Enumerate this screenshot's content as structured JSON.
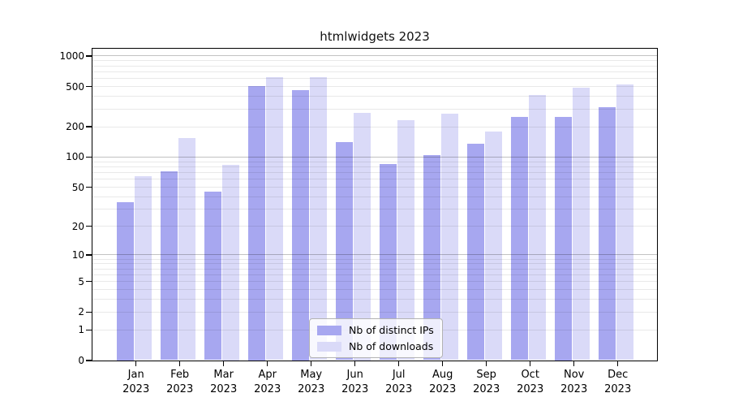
{
  "chart_data": {
    "type": "bar",
    "title": "htmlwidgets 2023",
    "x_axis": {
      "categories": [
        "Jan",
        "Feb",
        "Mar",
        "Apr",
        "May",
        "Jun",
        "Jul",
        "Aug",
        "Sep",
        "Oct",
        "Nov",
        "Dec"
      ],
      "year_label": "2023"
    },
    "y_axis": {
      "scale": "log1p",
      "ticks": [
        0,
        1,
        2,
        5,
        10,
        20,
        50,
        100,
        200,
        500,
        1000
      ],
      "major_gridlines": [
        10,
        100,
        1000
      ],
      "minor_gridlines": [
        1,
        2,
        3,
        4,
        5,
        6,
        7,
        8,
        9,
        20,
        30,
        40,
        50,
        60,
        70,
        80,
        90,
        200,
        300,
        400,
        500,
        600,
        700,
        800,
        900
      ],
      "ylim": [
        0,
        1180
      ],
      "grid": true
    },
    "series": [
      {
        "name": "Nb of distinct IPs",
        "color": "#a7a7f0",
        "values": [
          35,
          71,
          45,
          500,
          460,
          139,
          84,
          104,
          135,
          247,
          250,
          310
        ]
      },
      {
        "name": "Nb of downloads",
        "color": "#dadaf8",
        "values": [
          64,
          153,
          83,
          615,
          610,
          272,
          232,
          265,
          178,
          410,
          485,
          515
        ]
      }
    ],
    "legend": {
      "position": "lower-center-inside"
    },
    "colors": {
      "major_gridline": "#c7c7c7",
      "minor_gridline": "#ebebeb",
      "spine": "#000000",
      "text": "#000000"
    }
  }
}
